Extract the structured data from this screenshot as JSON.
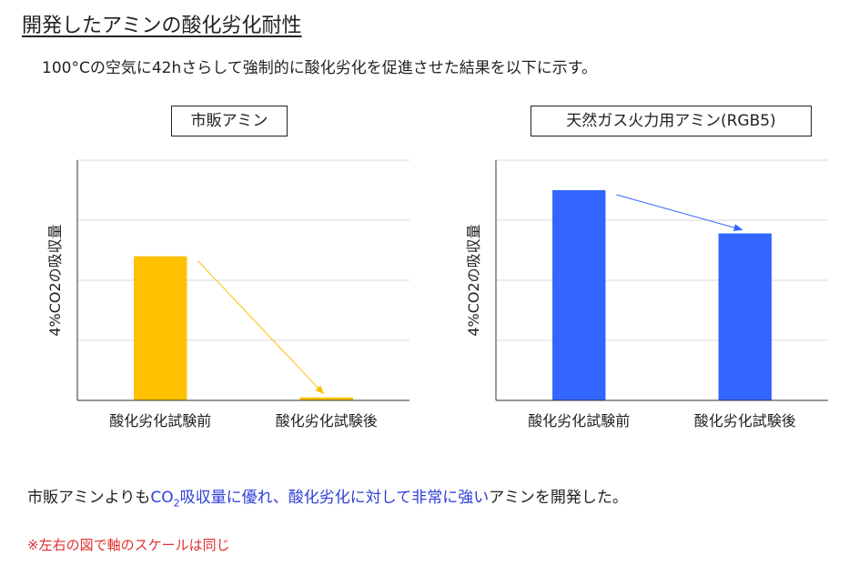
{
  "heading": "開発したアミンの酸化劣化耐性",
  "intro": "100°Cの空気に42hさらして強制的に酸化劣化を促進させた結果を以下に示す。",
  "conclusion": {
    "part1": "市販アミンよりも",
    "co": "CO",
    "sub": "2",
    "part2": "吸収量に優れ、酸化劣化に対して非常に強い",
    "part3": "アミンを開発した。"
  },
  "note": "※左右の図で軸のスケールは同じ",
  "chart_data": [
    {
      "type": "bar",
      "title": "市販アミン",
      "ylabel": "4%CO2の吸収量",
      "xlabel": "",
      "categories": [
        "酸化劣化試験前",
        "酸化劣化試験後"
      ],
      "values": [
        2.4,
        0.05
      ],
      "ylim": [
        0,
        4
      ],
      "grid": true,
      "color": "#FFC000",
      "arrow_color": "#FFC000"
    },
    {
      "type": "bar",
      "title": "天然ガス火力用アミン(RGB5)",
      "ylabel": "4%CO2の吸収量",
      "xlabel": "",
      "categories": [
        "酸化劣化試験前",
        "酸化劣化試験後"
      ],
      "values": [
        3.5,
        2.78
      ],
      "ylim": [
        0,
        4
      ],
      "grid": true,
      "color": "#3366FF",
      "arrow_color": "#3366FF"
    }
  ]
}
